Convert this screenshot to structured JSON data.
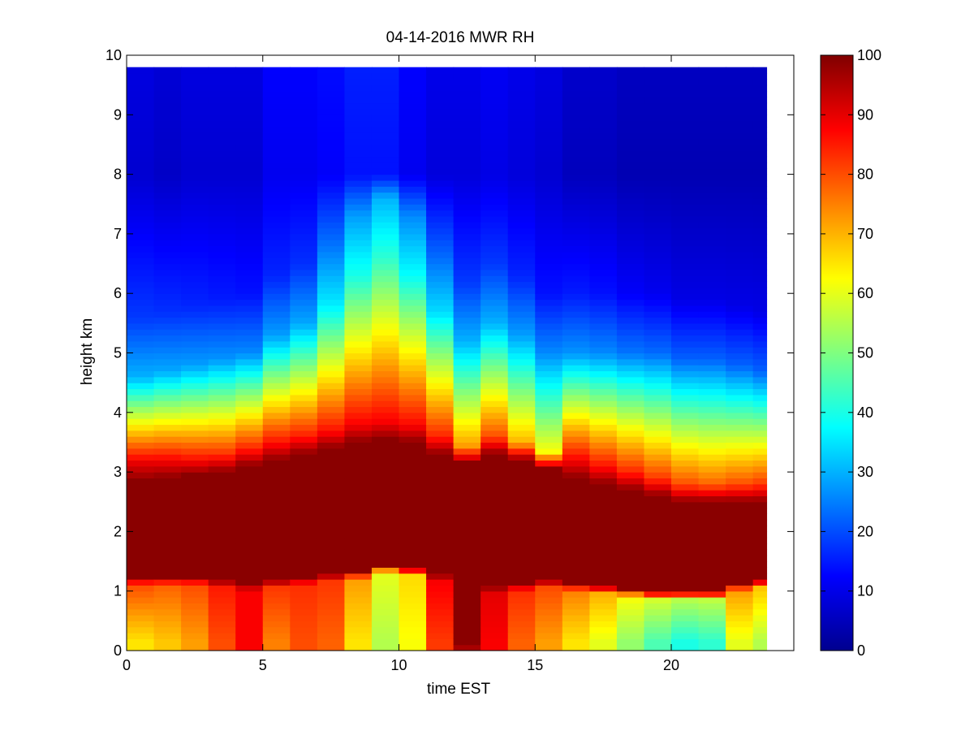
{
  "chart_data": {
    "type": "heatmap",
    "title": "04-14-2016 MWR RH",
    "xlabel": "time EST",
    "ylabel": "height km",
    "xlim": [
      0,
      24.5
    ],
    "ylim": [
      0,
      10
    ],
    "xticks": [
      0,
      5,
      10,
      15,
      20
    ],
    "yticks": [
      0,
      1,
      2,
      3,
      4,
      5,
      6,
      7,
      8,
      9,
      10
    ],
    "x_cell_width": 1,
    "x_start": 0,
    "x_end": 23.5,
    "y_top": 9.75,
    "colorbar": {
      "colormap": "jet",
      "range": [
        0,
        100
      ],
      "ticks": [
        0,
        10,
        20,
        30,
        40,
        50,
        60,
        70,
        80,
        90,
        100
      ]
    },
    "time_profiles": [
      {
        "t": 0,
        "ground": 65,
        "low": 80,
        "moist_bottom": 1.25,
        "moist_top": 2.85,
        "top_rh": 90,
        "fall_top": 4.6,
        "mid_rh": 18,
        "upper_rh": 8
      },
      {
        "t": 1,
        "ground": 68,
        "low": 78,
        "moist_bottom": 1.25,
        "moist_top": 2.9,
        "top_rh": 88,
        "fall_top": 4.7,
        "mid_rh": 17,
        "upper_rh": 7
      },
      {
        "t": 2,
        "ground": 72,
        "low": 80,
        "moist_bottom": 1.25,
        "moist_top": 2.95,
        "top_rh": 85,
        "fall_top": 4.8,
        "mid_rh": 16,
        "upper_rh": 8
      },
      {
        "t": 3,
        "ground": 80,
        "low": 85,
        "moist_bottom": 1.2,
        "moist_top": 3.0,
        "top_rh": 83,
        "fall_top": 4.9,
        "mid_rh": 15,
        "upper_rh": 8
      },
      {
        "t": 4,
        "ground": 88,
        "low": 88,
        "moist_bottom": 1.15,
        "moist_top": 3.1,
        "top_rh": 84,
        "fall_top": 5.0,
        "mid_rh": 14,
        "upper_rh": 8
      },
      {
        "t": 5,
        "ground": 75,
        "low": 82,
        "moist_bottom": 1.2,
        "moist_top": 3.2,
        "top_rh": 86,
        "fall_top": 5.3,
        "mid_rh": 16,
        "upper_rh": 11
      },
      {
        "t": 6,
        "ground": 80,
        "low": 83,
        "moist_bottom": 1.25,
        "moist_top": 3.3,
        "top_rh": 85,
        "fall_top": 5.5,
        "mid_rh": 17,
        "upper_rh": 11
      },
      {
        "t": 7,
        "ground": 78,
        "low": 82,
        "moist_bottom": 1.3,
        "moist_top": 3.4,
        "top_rh": 86,
        "fall_top": 5.8,
        "mid_rh": 24,
        "upper_rh": 12
      },
      {
        "t": 8,
        "ground": 65,
        "low": 72,
        "moist_bottom": 1.35,
        "moist_top": 3.5,
        "top_rh": 88,
        "fall_top": 6.3,
        "mid_rh": 28,
        "upper_rh": 14
      },
      {
        "t": 9,
        "ground": 55,
        "low": 60,
        "moist_bottom": 1.45,
        "moist_top": 3.55,
        "top_rh": 88,
        "fall_top": 6.6,
        "mid_rh": 30,
        "upper_rh": 14
      },
      {
        "t": 10,
        "ground": 62,
        "low": 66,
        "moist_bottom": 1.4,
        "moist_top": 3.5,
        "top_rh": 87,
        "fall_top": 6.3,
        "mid_rh": 26,
        "upper_rh": 11
      },
      {
        "t": 11,
        "ground": 82,
        "low": 88,
        "moist_bottom": 1.3,
        "moist_top": 3.3,
        "top_rh": 84,
        "fall_top": 5.7,
        "mid_rh": 22,
        "upper_rh": 9
      },
      {
        "t": 12,
        "ground": 96,
        "low": 99,
        "moist_bottom": 0.2,
        "moist_top": 3.15,
        "top_rh": 72,
        "fall_top": 5.2,
        "mid_rh": 18,
        "upper_rh": 9
      },
      {
        "t": 13,
        "ground": 88,
        "low": 90,
        "moist_bottom": 1.1,
        "moist_top": 3.3,
        "top_rh": 80,
        "fall_top": 5.5,
        "mid_rh": 18,
        "upper_rh": 10
      },
      {
        "t": 14,
        "ground": 78,
        "low": 83,
        "moist_bottom": 1.15,
        "moist_top": 3.2,
        "top_rh": 70,
        "fall_top": 5.3,
        "mid_rh": 16,
        "upper_rh": 9
      },
      {
        "t": 15,
        "ground": 72,
        "low": 80,
        "moist_bottom": 1.2,
        "moist_top": 3.05,
        "top_rh": 62,
        "fall_top": 5.0,
        "mid_rh": 14,
        "upper_rh": 8
      },
      {
        "t": 16,
        "ground": 65,
        "low": 75,
        "moist_bottom": 1.15,
        "moist_top": 2.9,
        "top_rh": 88,
        "fall_top": 5.0,
        "mid_rh": 15,
        "upper_rh": 6
      },
      {
        "t": 17,
        "ground": 60,
        "low": 70,
        "moist_bottom": 1.1,
        "moist_top": 2.8,
        "top_rh": 86,
        "fall_top": 5.0,
        "mid_rh": 14,
        "upper_rh": 6
      },
      {
        "t": 18,
        "ground": 52,
        "low": 62,
        "moist_bottom": 1.05,
        "moist_top": 2.7,
        "top_rh": 84,
        "fall_top": 5.0,
        "mid_rh": 12,
        "upper_rh": 5
      },
      {
        "t": 19,
        "ground": 45,
        "low": 58,
        "moist_bottom": 1.0,
        "moist_top": 2.6,
        "top_rh": 82,
        "fall_top": 5.0,
        "mid_rh": 11,
        "upper_rh": 5
      },
      {
        "t": 20,
        "ground": 40,
        "low": 55,
        "moist_bottom": 1.0,
        "moist_top": 2.5,
        "top_rh": 80,
        "fall_top": 4.9,
        "mid_rh": 10,
        "upper_rh": 5
      },
      {
        "t": 21,
        "ground": 42,
        "low": 56,
        "moist_bottom": 1.0,
        "moist_top": 2.5,
        "top_rh": 78,
        "fall_top": 4.9,
        "mid_rh": 10,
        "upper_rh": 5
      },
      {
        "t": 22,
        "ground": 60,
        "low": 72,
        "moist_bottom": 1.15,
        "moist_top": 2.5,
        "top_rh": 80,
        "fall_top": 4.8,
        "mid_rh": 10,
        "upper_rh": 5
      },
      {
        "t": 23,
        "ground": 55,
        "low": 68,
        "moist_bottom": 1.2,
        "moist_top": 2.5,
        "top_rh": 82,
        "fall_top": 4.7,
        "mid_rh": 10,
        "upper_rh": 5
      }
    ]
  }
}
